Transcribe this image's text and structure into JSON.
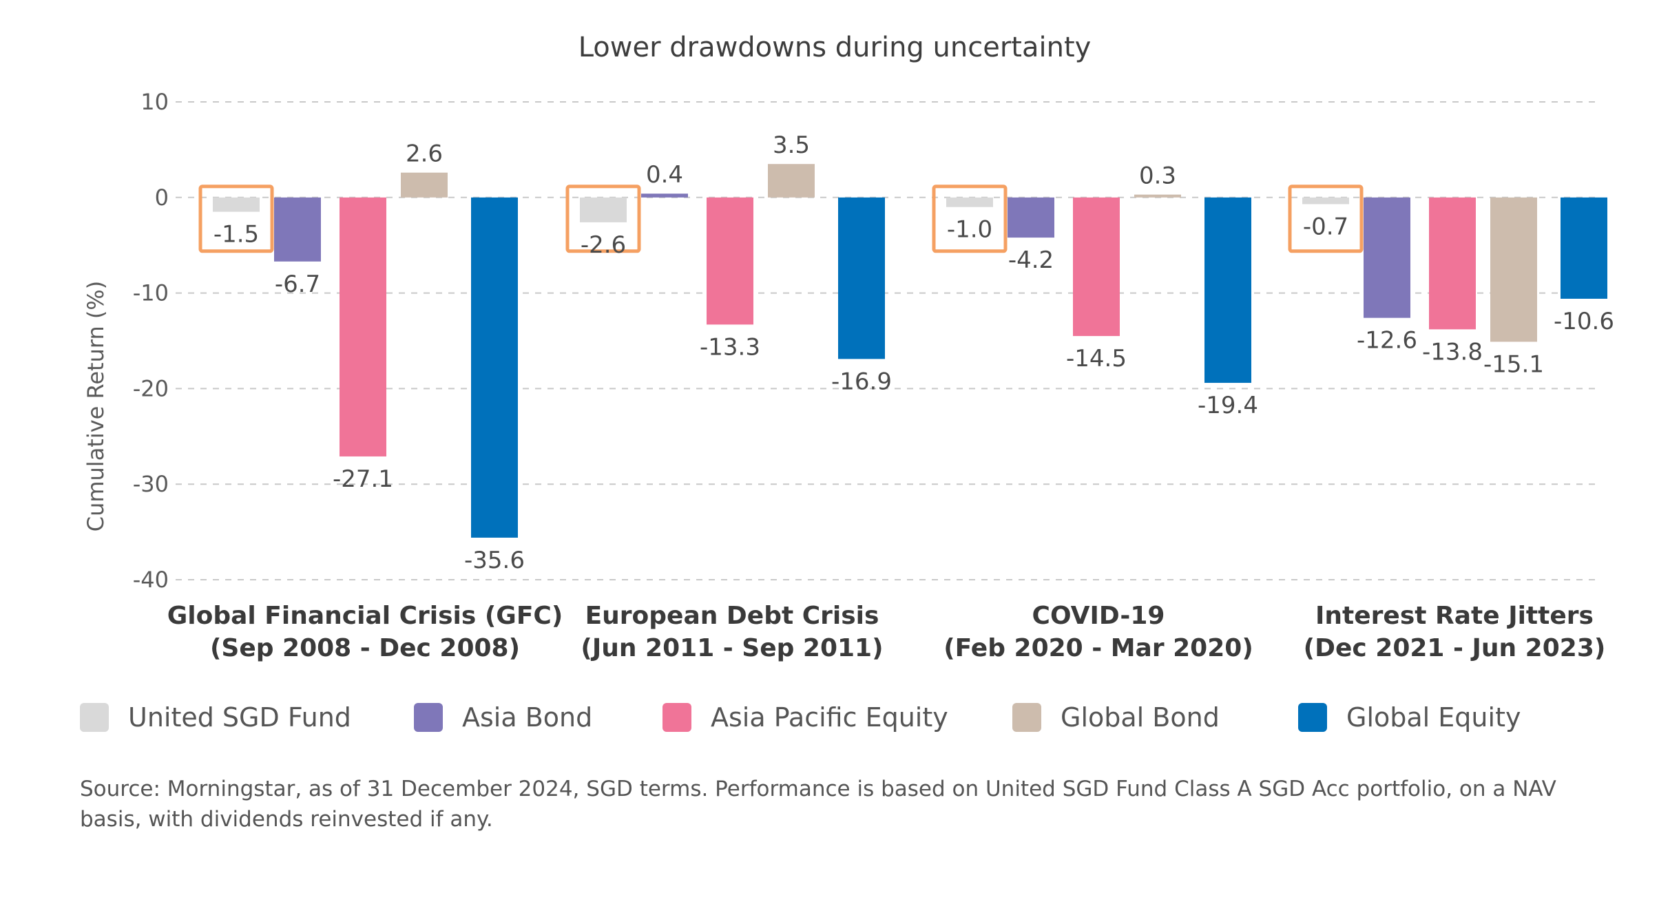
{
  "chart_data": {
    "type": "bar",
    "title": "Lower drawdowns during uncertainty",
    "ylabel": "Cumulative Return (%)",
    "xlabel": "",
    "ylim": [
      -40,
      10
    ],
    "yticks": [
      10,
      0,
      -10,
      -20,
      -30,
      -40
    ],
    "grid": true,
    "legend_position": "bottom",
    "categories": [
      [
        "Global Financial Crisis (GFC)",
        "(Sep 2008 - Dec 2008)"
      ],
      [
        "European Debt Crisis",
        "(Jun 2011 - Sep 2011)"
      ],
      [
        "COVID-19",
        "(Feb 2020 - Mar 2020)"
      ],
      [
        "Interest Rate Jitters",
        "(Dec 2021 - Jun 2023)"
      ]
    ],
    "series": [
      {
        "name": "United SGD Fund",
        "color": "#d9d9d9",
        "values": [
          -1.5,
          -2.6,
          -1.0,
          -0.7
        ],
        "highlighted": true
      },
      {
        "name": "Asia Bond",
        "color": "#7f77b9",
        "values": [
          -6.7,
          0.4,
          -4.2,
          -12.6
        ]
      },
      {
        "name": "Asia Pacific Equity",
        "color": "#f07498",
        "values": [
          -27.1,
          -13.3,
          -14.5,
          -13.8
        ]
      },
      {
        "name": "Global Bond",
        "color": "#cdbcad",
        "values": [
          2.6,
          3.5,
          0.3,
          -15.1
        ]
      },
      {
        "name": "Global Equity",
        "color": "#0071bb",
        "values": [
          -35.6,
          -16.9,
          -19.4,
          -10.6
        ]
      }
    ],
    "highlight_color": "#f5a062"
  },
  "source_note": "Source: Morningstar, as of 31 December 2024, SGD terms. Performance is based on United SGD Fund Class A SGD Acc portfolio, on a NAV basis, with dividends reinvested if any."
}
